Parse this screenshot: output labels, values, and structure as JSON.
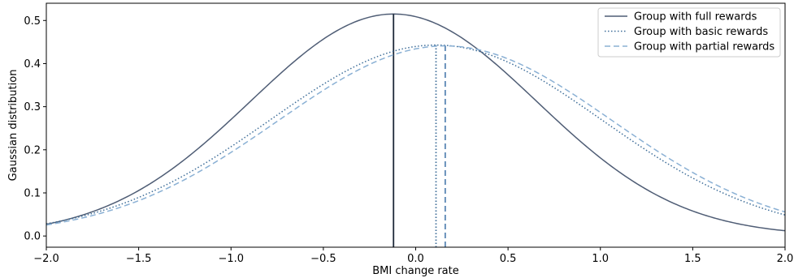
{
  "chart_data": {
    "type": "line",
    "title": "",
    "xlabel": "BMI change rate",
    "ylabel": "Gaussian distribution",
    "xlim": [
      -2.0,
      2.0
    ],
    "ylim": [
      -0.026,
      0.54
    ],
    "grid": false,
    "legend_position": "top-right",
    "x_ticks": [
      -2.0,
      -1.5,
      -1.0,
      -0.5,
      0.0,
      0.5,
      1.0,
      1.5,
      2.0
    ],
    "x_tick_labels": [
      "−2.0",
      "−1.5",
      "−1.0",
      "−0.5",
      "0.0",
      "0.5",
      "1.0",
      "1.5",
      "2.0"
    ],
    "y_ticks": [
      0.0,
      0.1,
      0.2,
      0.3,
      0.4,
      0.5
    ],
    "y_tick_labels": [
      "0.0",
      "0.1",
      "0.2",
      "0.3",
      "0.4",
      "0.5"
    ],
    "series": [
      {
        "name": "Group with full rewards",
        "distribution": "gaussian",
        "mean": -0.12,
        "std": 0.775,
        "peak": 0.515,
        "style": "solid",
        "color": "#4f5d75",
        "mean_line_color": "#1e2a3a"
      },
      {
        "name": "Group with basic rewards",
        "distribution": "gaussian",
        "mean": 0.11,
        "std": 0.9,
        "peak": 0.443,
        "style": "dotted",
        "color": "#3f6e99",
        "mean_line_color": "#3f6e99"
      },
      {
        "name": "Group with partial rewards",
        "distribution": "gaussian",
        "mean": 0.16,
        "std": 0.905,
        "peak": 0.441,
        "style": "dashed",
        "color": "#8ab0d4",
        "mean_line_color": "#5a86b4"
      }
    ]
  }
}
